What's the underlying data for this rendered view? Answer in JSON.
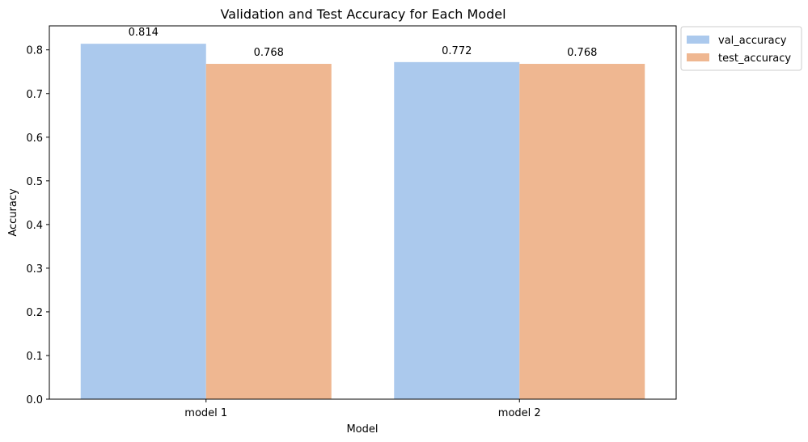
{
  "chart_data": {
    "type": "bar",
    "title": "Validation and Test Accuracy for Each Model",
    "xlabel": "Model",
    "ylabel": "Accuracy",
    "categories": [
      "model 1",
      "model 2"
    ],
    "series": [
      {
        "name": "val_accuracy",
        "values": [
          0.814,
          0.772
        ],
        "color": "#abc9ed",
        "labels": [
          "0.814",
          "0.772"
        ]
      },
      {
        "name": "test_accuracy",
        "values": [
          0.768,
          0.768
        ],
        "color": "#efb791",
        "labels": [
          "0.768",
          "0.768"
        ]
      }
    ],
    "ylim": [
      0,
      0.855
    ],
    "yticks": [
      0.0,
      0.1,
      0.2,
      0.3,
      0.4,
      0.5,
      0.6,
      0.7,
      0.8
    ],
    "ytick_labels": [
      "0.0",
      "0.1",
      "0.2",
      "0.3",
      "0.4",
      "0.5",
      "0.6",
      "0.7",
      "0.8"
    ],
    "grid": false,
    "legend_position": "outside-top-right"
  }
}
